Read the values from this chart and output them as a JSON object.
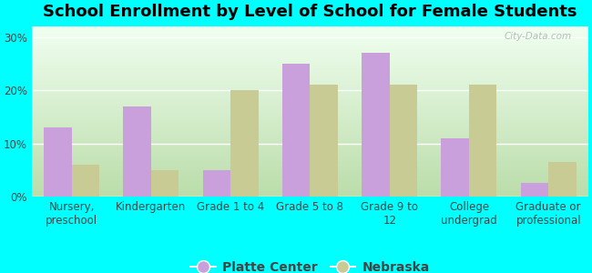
{
  "title": "School Enrollment by Level of School for Female Students",
  "categories": [
    "Nursery,\npreschool",
    "Kindergarten",
    "Grade 1 to 4",
    "Grade 5 to 8",
    "Grade 9 to\n12",
    "College\nundergrad",
    "Graduate or\nprofessional"
  ],
  "platte_center": [
    13.0,
    17.0,
    5.0,
    25.0,
    27.0,
    11.0,
    2.5
  ],
  "nebraska": [
    6.0,
    5.0,
    20.0,
    21.0,
    21.0,
    21.0,
    6.5
  ],
  "platte_color": "#C9A0DC",
  "nebraska_color": "#C8CC94",
  "background_color": "#00FFFF",
  "plot_bg_top": "#F0FFF0",
  "plot_bg_bottom": "#BBDDAA",
  "yticks": [
    0,
    10,
    20,
    30
  ],
  "ylim": [
    0,
    32
  ],
  "bar_width": 0.35,
  "legend_platte": "Platte Center",
  "legend_nebraska": "Nebraska",
  "title_fontsize": 13,
  "tick_fontsize": 8.5,
  "legend_fontsize": 10
}
